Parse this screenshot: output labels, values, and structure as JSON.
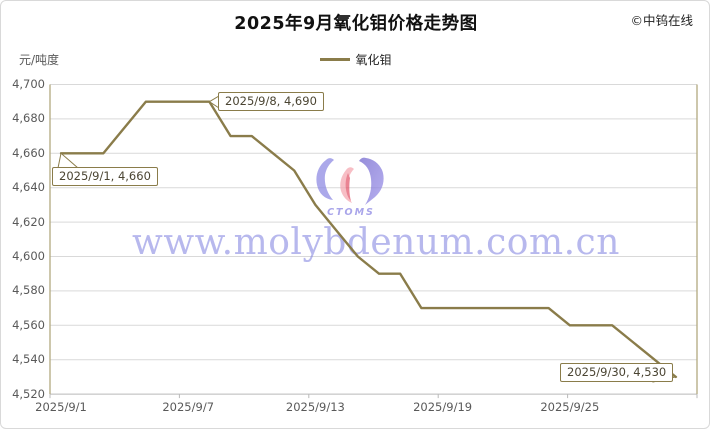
{
  "title": "2025年9月氧化钼价格走势图",
  "copyright": "©中钨在线",
  "legend": {
    "label": "氧化钼"
  },
  "y_axis": {
    "unit_label": "元/吨度",
    "tick_labels": [
      "4,700",
      "4,680",
      "4,660",
      "4,640",
      "4,620",
      "4,600",
      "4,580",
      "4,560",
      "4,540",
      "4,520"
    ]
  },
  "x_axis": {
    "labels": [
      "2025/9/1",
      "2025/9/7",
      "2025/9/13",
      "2025/9/19",
      "2025/9/25"
    ],
    "label_days": [
      1,
      7,
      13,
      19,
      25
    ]
  },
  "watermark": {
    "url_text": "www.molybdenum.com.cn",
    "logo_text": "CTOMS"
  },
  "annotations": [
    {
      "label": "2025/9/1, 4,660",
      "day": 1,
      "value": 4660
    },
    {
      "label": "2025/9/8, 4,690",
      "day": 8,
      "value": 4690
    },
    {
      "label": "2025/9/30, 4,530",
      "day": 30,
      "value": 4530
    }
  ],
  "colors": {
    "series_line": "#8A7C4A",
    "axis_line": "#B2A97F",
    "gridline": "#D9D9D9",
    "bottom_axis": "#B9B9B9",
    "axis_text": "#595959",
    "watermark_text": "#7E7FE0"
  },
  "chart_data": {
    "type": "line",
    "title": "2025年9月氧化钼价格走势图",
    "ylabel": "元/吨度",
    "ylim": [
      4520,
      4700
    ],
    "y_step": 20,
    "grid": true,
    "legend_position": "top-center",
    "series": [
      {
        "name": "氧化钼",
        "color": "#8A7C4A",
        "x": [
          "2025/9/1",
          "2025/9/2",
          "2025/9/3",
          "2025/9/4",
          "2025/9/5",
          "2025/9/6",
          "2025/9/7",
          "2025/9/8",
          "2025/9/9",
          "2025/9/10",
          "2025/9/11",
          "2025/9/12",
          "2025/9/13",
          "2025/9/14",
          "2025/9/15",
          "2025/9/16",
          "2025/9/17",
          "2025/9/18",
          "2025/9/19",
          "2025/9/20",
          "2025/9/21",
          "2025/9/22",
          "2025/9/23",
          "2025/9/24",
          "2025/9/25",
          "2025/9/26",
          "2025/9/27",
          "2025/9/28",
          "2025/9/29",
          "2025/9/30"
        ],
        "values": [
          4660,
          4660,
          4660,
          4675,
          4690,
          4690,
          4690,
          4690,
          4670,
          4670,
          4660,
          4650,
          4630,
          4615,
          4600,
          4590,
          4590,
          4570,
          4570,
          4570,
          4570,
          4570,
          4570,
          4570,
          4560,
          4560,
          4560,
          4550,
          4540,
          4530
        ]
      }
    ]
  }
}
